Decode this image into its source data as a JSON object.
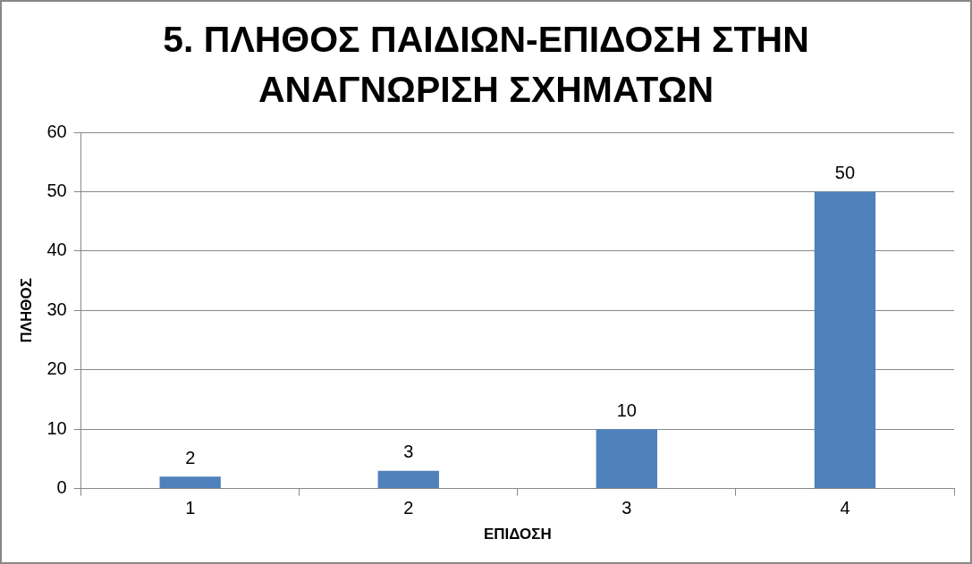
{
  "chart_data": {
    "type": "bar",
    "title": "5. ΠΛΗΘΟΣ ΠΑΙΔΙΩΝ-ΕΠΙΔΟΣΗ ΣΤΗΝ ΑΝΑΓΝΩΡΙΣΗ ΣΧΗΜΑΤΩΝ",
    "xlabel": "ΕΠΙΔΟΣΗ",
    "ylabel": "ΠΛΗΘΟΣ",
    "categories": [
      "1",
      "2",
      "3",
      "4"
    ],
    "values": [
      2,
      3,
      10,
      50
    ],
    "color": "#4f81bd",
    "ylim": [
      0,
      60
    ],
    "yticks": [
      0,
      10,
      20,
      30,
      40,
      50,
      60
    ],
    "grid": "y",
    "data_labels": true
  }
}
